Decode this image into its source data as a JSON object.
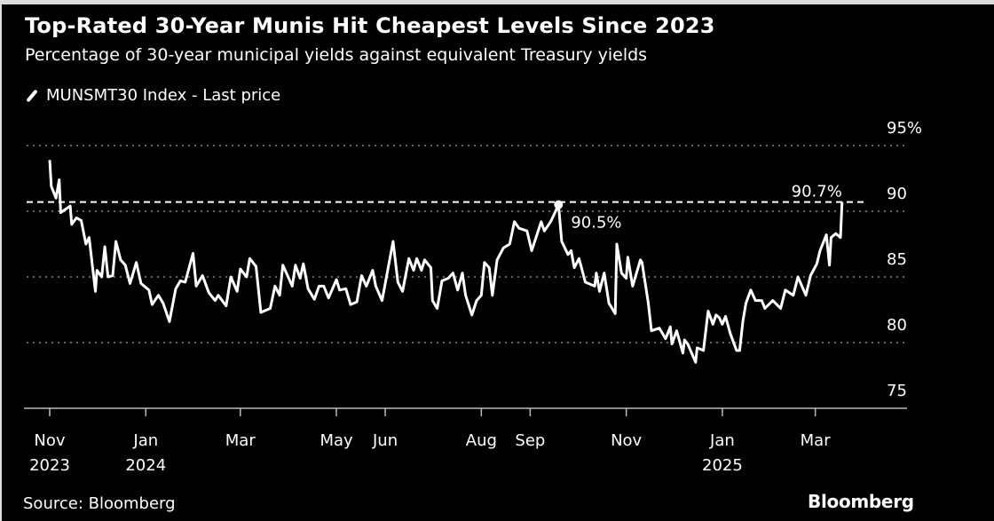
{
  "chart_data": {
    "type": "line",
    "title": "Top-Rated 30-Year Munis Hit Cheapest Levels Since 2023",
    "subtitle": "Percentage of 30-year municipal yields against equivalent Treasury yields",
    "legend": [
      {
        "name": "MUNSMT30 Index - Last price",
        "color": "#ffffff"
      }
    ],
    "legend_placement": "top-left",
    "source": "Source: Bloomberg",
    "logo": "Bloomberg",
    "ylim": [
      75,
      95
    ],
    "y_ticks": [
      {
        "value": 95,
        "label": "95%"
      },
      {
        "value": 90,
        "label": "90"
      },
      {
        "value": 85,
        "label": "85"
      },
      {
        "value": 80,
        "label": "80"
      },
      {
        "value": 75,
        "label": "75"
      }
    ],
    "x_ticks": [
      {
        "date": "2023-11-01",
        "label": "Nov",
        "sublabel": "2023"
      },
      {
        "date": "2024-01-01",
        "label": "Jan",
        "sublabel": "2024"
      },
      {
        "date": "2024-03-01",
        "label": "Mar",
        "sublabel": ""
      },
      {
        "date": "2024-05-01",
        "label": "May",
        "sublabel": ""
      },
      {
        "date": "2024-06-01",
        "label": "Jun",
        "sublabel": ""
      },
      {
        "date": "2024-08-01",
        "label": "Aug",
        "sublabel": ""
      },
      {
        "date": "2024-09-01",
        "label": "Sep",
        "sublabel": ""
      },
      {
        "date": "2024-11-01",
        "label": "Nov",
        "sublabel": ""
      },
      {
        "date": "2025-01-01",
        "label": "Jan",
        "sublabel": "2025"
      },
      {
        "date": "2025-03-01",
        "label": "Mar",
        "sublabel": ""
      }
    ],
    "grid": {
      "horizontal": true,
      "style": "dotted"
    },
    "reference_line": {
      "value": 90.7,
      "style": "dashed"
    },
    "annotations": [
      {
        "date": "2024-09-19",
        "value": 90.5,
        "label": "90.5%",
        "marker": true
      },
      {
        "date": "2025-03-18",
        "value": 90.7,
        "label": "90.7%",
        "marker": false
      }
    ],
    "series": [
      {
        "name": "MUNSMT30 Index - Last price",
        "color": "#ffffff",
        "points": [
          [
            "2023-11-01",
            93.9
          ],
          [
            "2023-11-02",
            91.9
          ],
          [
            "2023-11-05",
            91.0
          ],
          [
            "2023-11-07",
            92.4
          ],
          [
            "2023-11-08",
            89.9
          ],
          [
            "2023-11-14",
            90.4
          ],
          [
            "2023-11-15",
            89.0
          ],
          [
            "2023-11-18",
            89.5
          ],
          [
            "2023-11-21",
            89.3
          ],
          [
            "2023-11-24",
            87.5
          ],
          [
            "2023-11-26",
            88.0
          ],
          [
            "2023-11-30",
            83.9
          ],
          [
            "2023-12-01",
            85.5
          ],
          [
            "2023-12-04",
            85.0
          ],
          [
            "2023-12-06",
            87.3
          ],
          [
            "2023-12-08",
            85.0
          ],
          [
            "2023-12-11",
            85.1
          ],
          [
            "2023-12-13",
            87.7
          ],
          [
            "2023-12-16",
            86.3
          ],
          [
            "2023-12-19",
            85.9
          ],
          [
            "2023-12-22",
            84.5
          ],
          [
            "2023-12-26",
            86.1
          ],
          [
            "2023-12-29",
            84.5
          ],
          [
            "2024-01-03",
            84.0
          ],
          [
            "2024-01-05",
            82.9
          ],
          [
            "2024-01-09",
            83.6
          ],
          [
            "2024-01-12",
            83.0
          ],
          [
            "2024-01-16",
            81.6
          ],
          [
            "2024-01-20",
            84.1
          ],
          [
            "2024-01-23",
            84.7
          ],
          [
            "2024-01-26",
            84.6
          ],
          [
            "2024-01-31",
            86.8
          ],
          [
            "2024-02-02",
            84.3
          ],
          [
            "2024-02-06",
            85.1
          ],
          [
            "2024-02-10",
            83.8
          ],
          [
            "2024-02-14",
            83.2
          ],
          [
            "2024-02-16",
            83.6
          ],
          [
            "2024-02-21",
            82.8
          ],
          [
            "2024-02-24",
            85.0
          ],
          [
            "2024-02-28",
            83.9
          ],
          [
            "2024-03-01",
            85.6
          ],
          [
            "2024-03-05",
            85.0
          ],
          [
            "2024-03-07",
            86.4
          ],
          [
            "2024-03-11",
            85.8
          ],
          [
            "2024-03-14",
            82.3
          ],
          [
            "2024-03-20",
            82.6
          ],
          [
            "2024-03-23",
            84.3
          ],
          [
            "2024-03-26",
            83.6
          ],
          [
            "2024-03-28",
            85.9
          ],
          [
            "2024-04-03",
            84.3
          ],
          [
            "2024-04-05",
            85.9
          ],
          [
            "2024-04-08",
            84.9
          ],
          [
            "2024-04-10",
            86.0
          ],
          [
            "2024-04-13",
            84.1
          ],
          [
            "2024-04-17",
            83.3
          ],
          [
            "2024-04-20",
            84.3
          ],
          [
            "2024-04-23",
            84.3
          ],
          [
            "2024-04-26",
            83.4
          ],
          [
            "2024-05-01",
            84.8
          ],
          [
            "2024-05-03",
            84.0
          ],
          [
            "2024-05-07",
            84.1
          ],
          [
            "2024-05-10",
            82.9
          ],
          [
            "2024-05-14",
            83.1
          ],
          [
            "2024-05-17",
            85.1
          ],
          [
            "2024-05-20",
            84.3
          ],
          [
            "2024-05-24",
            85.5
          ],
          [
            "2024-05-26",
            84.3
          ],
          [
            "2024-05-30",
            83.2
          ],
          [
            "2024-06-06",
            87.7
          ],
          [
            "2024-06-09",
            84.6
          ],
          [
            "2024-06-12",
            83.9
          ],
          [
            "2024-06-16",
            86.4
          ],
          [
            "2024-06-19",
            85.5
          ],
          [
            "2024-06-21",
            86.4
          ],
          [
            "2024-06-24",
            85.5
          ],
          [
            "2024-06-26",
            86.3
          ],
          [
            "2024-06-30",
            85.7
          ],
          [
            "2024-07-01",
            83.2
          ],
          [
            "2024-07-04",
            82.6
          ],
          [
            "2024-07-07",
            84.7
          ],
          [
            "2024-07-11",
            84.9
          ],
          [
            "2024-07-14",
            85.3
          ],
          [
            "2024-07-17",
            84.0
          ],
          [
            "2024-07-20",
            85.3
          ],
          [
            "2024-07-22",
            83.6
          ],
          [
            "2024-07-26",
            82.1
          ],
          [
            "2024-07-29",
            83.2
          ],
          [
            "2024-08-01",
            83.6
          ],
          [
            "2024-08-03",
            86.1
          ],
          [
            "2024-08-06",
            85.7
          ],
          [
            "2024-08-08",
            83.6
          ],
          [
            "2024-08-11",
            86.3
          ],
          [
            "2024-08-15",
            87.2
          ],
          [
            "2024-08-19",
            87.5
          ],
          [
            "2024-08-22",
            89.2
          ],
          [
            "2024-08-25",
            88.7
          ],
          [
            "2024-08-30",
            88.5
          ],
          [
            "2024-09-02",
            87.0
          ],
          [
            "2024-09-08",
            89.2
          ],
          [
            "2024-09-10",
            88.5
          ],
          [
            "2024-09-14",
            89.2
          ],
          [
            "2024-09-16",
            89.7
          ],
          [
            "2024-09-19",
            90.5
          ],
          [
            "2024-09-21",
            87.7
          ],
          [
            "2024-09-25",
            86.7
          ],
          [
            "2024-09-27",
            87.0
          ],
          [
            "2024-09-29",
            85.7
          ],
          [
            "2024-10-02",
            86.4
          ],
          [
            "2024-10-06",
            84.6
          ],
          [
            "2024-10-12",
            84.3
          ],
          [
            "2024-10-13",
            85.3
          ],
          [
            "2024-10-15",
            83.9
          ],
          [
            "2024-10-18",
            85.3
          ],
          [
            "2024-10-21",
            83.0
          ],
          [
            "2024-10-25",
            82.2
          ],
          [
            "2024-10-26",
            87.5
          ],
          [
            "2024-10-29",
            85.3
          ],
          [
            "2024-11-01",
            84.9
          ],
          [
            "2024-11-02",
            86.5
          ],
          [
            "2024-11-05",
            84.3
          ],
          [
            "2024-11-10",
            86.3
          ],
          [
            "2024-11-11",
            86.1
          ],
          [
            "2024-11-15",
            83.0
          ],
          [
            "2024-11-17",
            80.9
          ],
          [
            "2024-11-22",
            81.1
          ],
          [
            "2024-11-26",
            80.3
          ],
          [
            "2024-11-29",
            81.2
          ],
          [
            "2024-11-30",
            79.9
          ],
          [
            "2024-12-03",
            80.9
          ],
          [
            "2024-12-07",
            79.2
          ],
          [
            "2024-12-08",
            80.2
          ],
          [
            "2024-12-10",
            79.9
          ],
          [
            "2024-12-15",
            78.5
          ],
          [
            "2024-12-16",
            79.6
          ],
          [
            "2024-12-20",
            79.4
          ],
          [
            "2024-12-23",
            82.4
          ],
          [
            "2024-12-26",
            81.4
          ],
          [
            "2024-12-28",
            82.1
          ],
          [
            "2024-12-30",
            81.9
          ],
          [
            "2025-01-01",
            81.4
          ],
          [
            "2025-01-03",
            82.0
          ],
          [
            "2025-01-06",
            80.7
          ],
          [
            "2025-01-10",
            79.4
          ],
          [
            "2025-01-12",
            79.4
          ],
          [
            "2025-01-14",
            81.6
          ],
          [
            "2025-01-16",
            83.0
          ],
          [
            "2025-01-19",
            84.0
          ],
          [
            "2025-01-22",
            83.2
          ],
          [
            "2025-01-26",
            83.2
          ],
          [
            "2025-01-28",
            82.6
          ],
          [
            "2025-02-02",
            83.2
          ],
          [
            "2025-02-07",
            82.6
          ],
          [
            "2025-02-10",
            84.0
          ],
          [
            "2025-02-15",
            83.6
          ],
          [
            "2025-02-18",
            85.0
          ],
          [
            "2025-02-23",
            83.6
          ],
          [
            "2025-02-26",
            85.1
          ],
          [
            "2025-03-02",
            86.0
          ],
          [
            "2025-03-04",
            87.0
          ],
          [
            "2025-03-08",
            88.2
          ],
          [
            "2025-03-10",
            85.9
          ],
          [
            "2025-03-11",
            88.0
          ],
          [
            "2025-03-14",
            88.3
          ],
          [
            "2025-03-17",
            88.0
          ],
          [
            "2025-03-18",
            90.7
          ]
        ]
      }
    ]
  }
}
